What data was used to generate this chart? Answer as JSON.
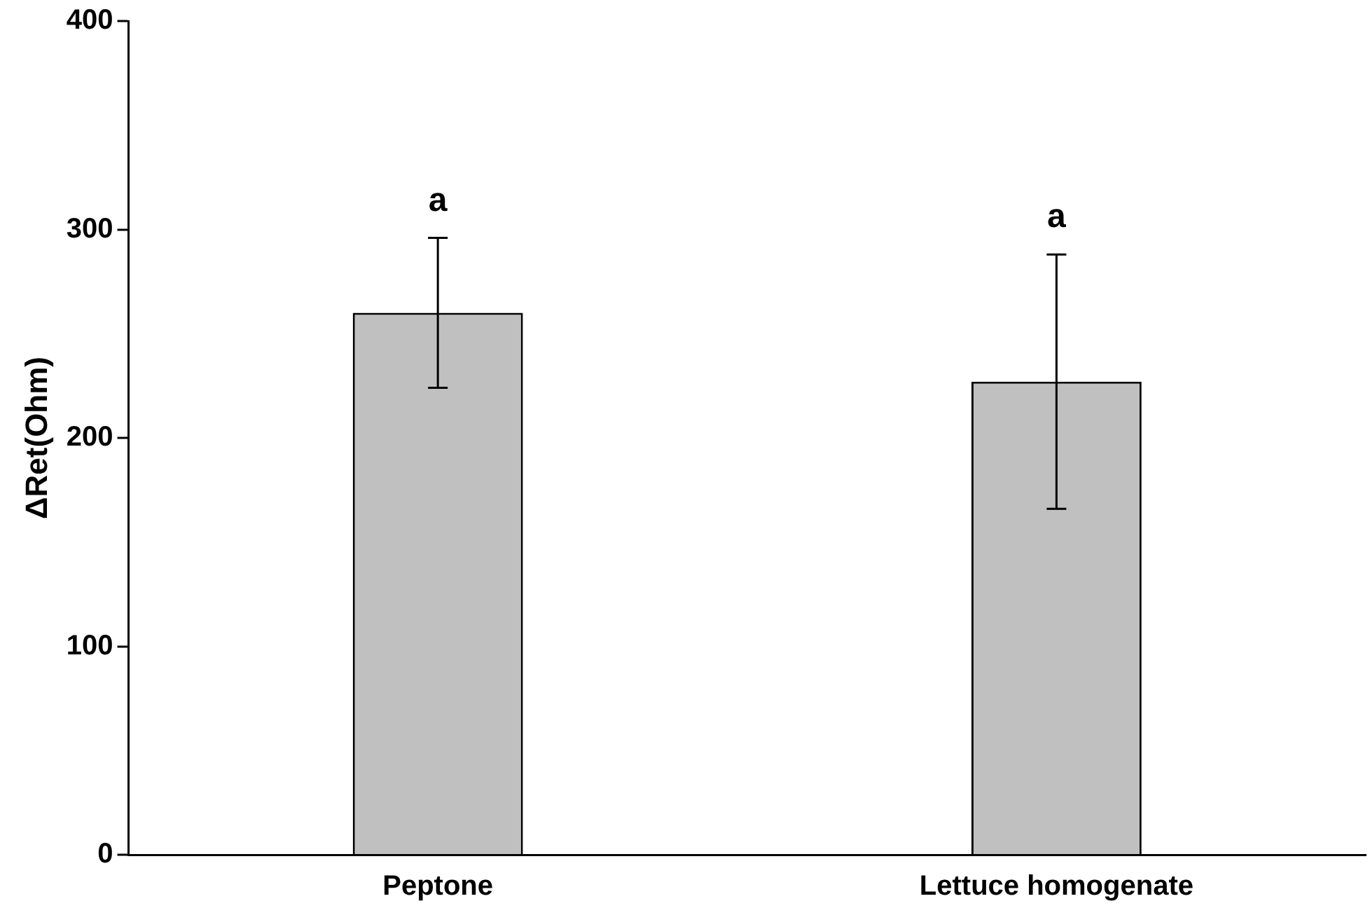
{
  "chart_data": {
    "type": "bar",
    "ylabel": "ΔRet(Ohm)",
    "categories": [
      "Peptone",
      "Lettuce homogenate"
    ],
    "values": [
      260,
      227
    ],
    "errors": [
      [
        224,
        296
      ],
      [
        166,
        288
      ]
    ],
    "color": "#c0c0c0",
    "ylim": [
      0,
      400
    ],
    "yticks": [
      0,
      100,
      200,
      300,
      400
    ],
    "grid": false,
    "legend": false,
    "annotations": [
      "a",
      "a"
    ]
  }
}
